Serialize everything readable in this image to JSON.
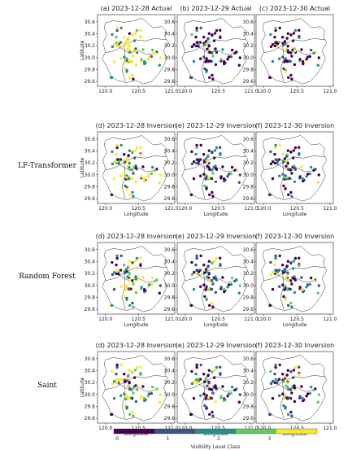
{
  "chart_data": {
    "type": "scatter",
    "x": {
      "label": "Longitude",
      "ticks": [
        "120.0",
        "120.5",
        "121.0"
      ],
      "lim": [
        119.88,
        121.05
      ]
    },
    "y": {
      "label": "Latitude",
      "ticks": [
        "29.6",
        "29.8",
        "30.0",
        "30.2",
        "30.4",
        "30.6"
      ],
      "lim": [
        29.52,
        30.72
      ]
    },
    "colorbar": {
      "label": "Visibility Level Class",
      "ticks": [
        "0",
        "1",
        "2",
        "3"
      ],
      "colors": [
        "#440154",
        "#3b528b",
        "#21918c",
        "#5ec962",
        "#fde725"
      ]
    },
    "rows": [
      {
        "label": "",
        "panels": [
          {
            "title": "(a) 2023-12-28 Actual",
            "class_counts": {
              "0": 2,
              "1": 8,
              "2": 16,
              "3": 7,
              "4": 42
            }
          },
          {
            "title": "(b) 2023-12-29 Actual",
            "class_counts": {
              "0": 48,
              "1": 10,
              "2": 10,
              "3": 4,
              "4": 3
            }
          },
          {
            "title": "(c) 2023-12-30 Actual",
            "class_counts": {
              "0": 44,
              "1": 6,
              "2": 12,
              "3": 5,
              "4": 8
            }
          }
        ]
      },
      {
        "label": "LF-Transformer",
        "panels": [
          {
            "title": "(d) 2023-12-28 Inversion",
            "class_counts": {
              "0": 12,
              "1": 10,
              "2": 12,
              "3": 11,
              "4": 30
            }
          },
          {
            "title": "(e) 2023-12-29 Inversion",
            "class_counts": {
              "0": 36,
              "1": 14,
              "2": 12,
              "3": 8,
              "4": 5
            }
          },
          {
            "title": "(f) 2023-12-30 Inversion",
            "class_counts": {
              "0": 34,
              "1": 12,
              "2": 13,
              "3": 8,
              "4": 8
            }
          }
        ]
      },
      {
        "label": "Random Forest",
        "panels": [
          {
            "title": "(d) 2023-12-28 Inversion",
            "class_counts": {
              "0": 14,
              "1": 12,
              "2": 12,
              "3": 12,
              "4": 25
            }
          },
          {
            "title": "(e) 2023-12-29 Inversion",
            "class_counts": {
              "0": 26,
              "1": 18,
              "2": 13,
              "3": 9,
              "4": 9
            }
          },
          {
            "title": "(f) 2023-12-30 Inversion",
            "class_counts": {
              "0": 24,
              "1": 18,
              "2": 14,
              "3": 9,
              "4": 10
            }
          }
        ]
      },
      {
        "label": "Saint",
        "panels": [
          {
            "title": "(d) 2023-12-28 Inversion",
            "class_counts": {
              "0": 12,
              "1": 12,
              "2": 13,
              "3": 12,
              "4": 26
            }
          },
          {
            "title": "(e) 2023-12-29 Inversion",
            "class_counts": {
              "0": 30,
              "1": 16,
              "2": 12,
              "3": 9,
              "4": 8
            }
          },
          {
            "title": "(f) 2023-12-30 Inversion",
            "class_counts": {
              "0": 28,
              "1": 16,
              "2": 13,
              "3": 9,
              "4": 9
            }
          }
        ]
      }
    ]
  }
}
